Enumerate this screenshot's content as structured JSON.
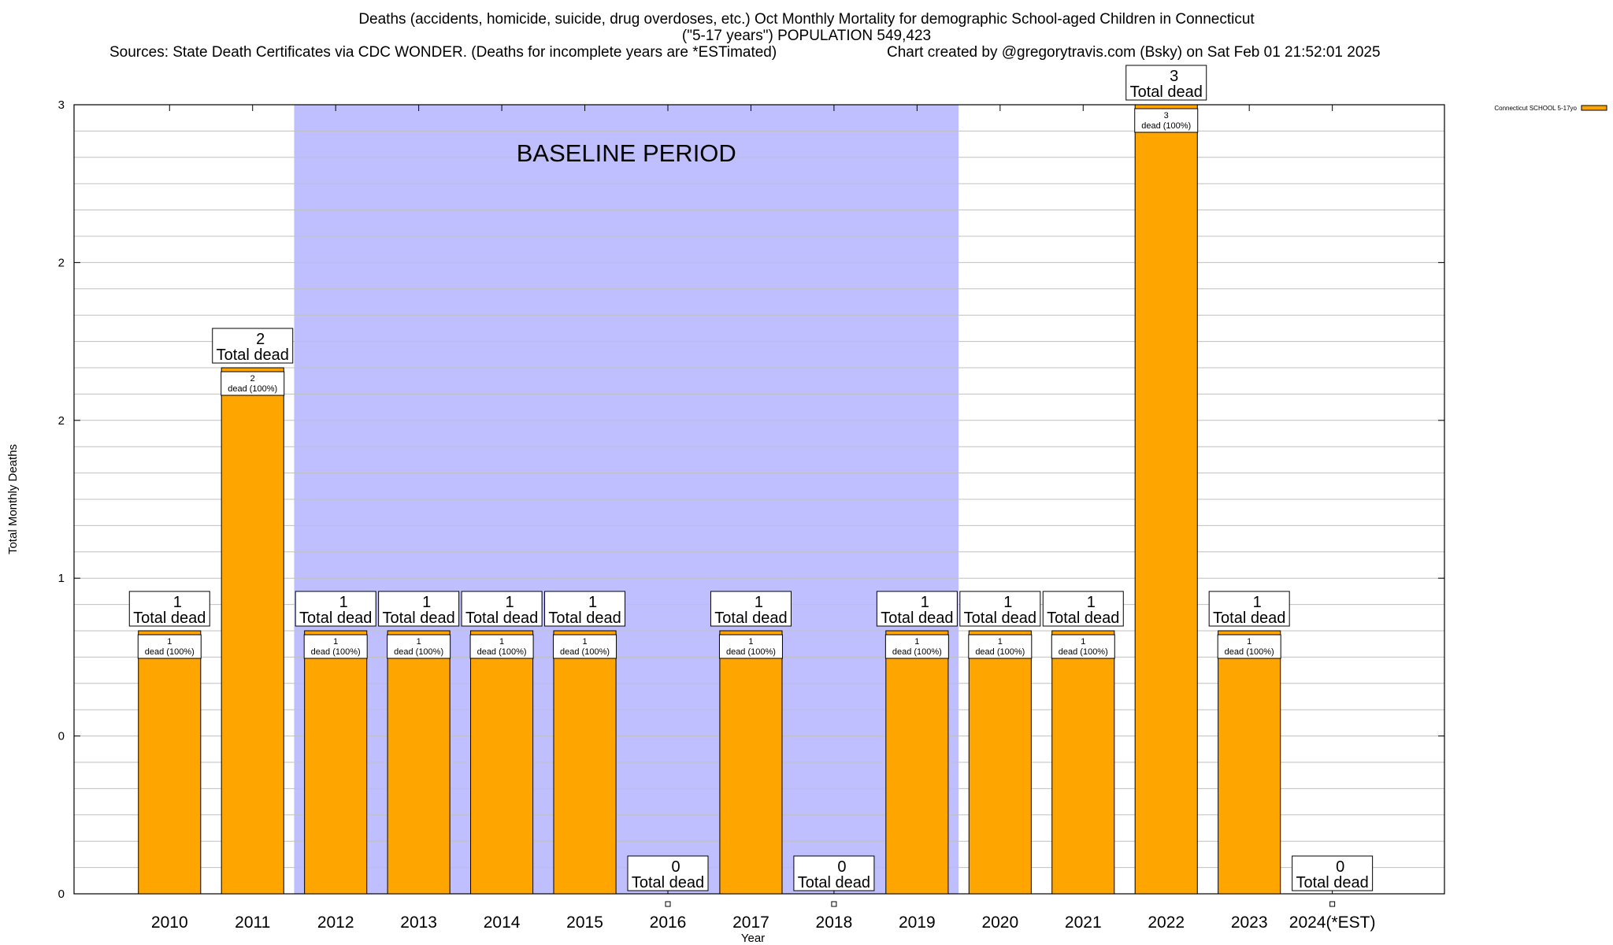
{
  "title": {
    "line1": "Deaths (accidents, homicide, suicide, drug overdoses, etc.) Oct Monthly Mortality for demographic School-aged Children in Connecticut",
    "line2": "(\"5-17 years\") POPULATION 549,423",
    "sources": "Sources: State Death Certificates via CDC WONDER. (Deaths for incomplete years are *ESTimated)",
    "credit": "Chart created by @gregorytravis.com (Bsky) on Sat Feb 01 21:52:01 2025"
  },
  "colors": {
    "bar": "#ffa500",
    "baseline_band": "#bfbfff",
    "grid": "#c0c0c0"
  },
  "chart_data": {
    "type": "bar",
    "xlabel": "Year",
    "ylabel": "Total Monthly Deaths",
    "ylim": [
      0,
      3
    ],
    "y_tick_labels": [
      "0",
      "0",
      "1",
      "2",
      "2",
      "3"
    ],
    "grid": true,
    "legend_placement": "top-right",
    "baseline_label": "BASELINE PERIOD",
    "baseline_range": [
      "2012",
      "2019"
    ],
    "total_word": "Total dead",
    "segment_suffix": "dead (100%)",
    "categories": [
      "2010",
      "2011",
      "2012",
      "2013",
      "2014",
      "2015",
      "2016",
      "2017",
      "2018",
      "2019",
      "2020",
      "2021",
      "2022",
      "2023",
      "2024(*EST)"
    ],
    "series": [
      {
        "name": "Connecticut SCHOOL 5-17yo",
        "values": [
          1,
          2,
          1,
          1,
          1,
          1,
          0,
          1,
          0,
          1,
          1,
          1,
          3,
          1,
          0
        ]
      }
    ]
  }
}
